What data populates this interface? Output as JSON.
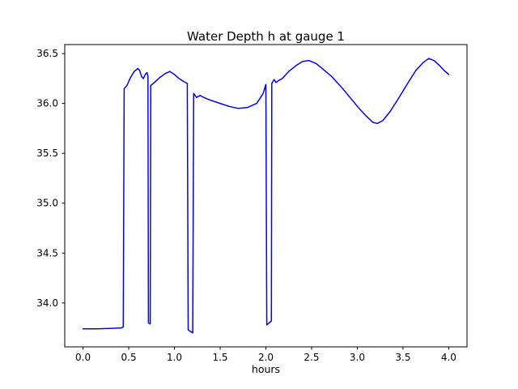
{
  "figure": {
    "background": "#ffffff"
  },
  "chart_data": {
    "type": "line",
    "title": "Water Depth h at gauge 1",
    "xlabel": "hours",
    "ylabel": "",
    "grid": false,
    "legend": null,
    "line_color": "#0000ff",
    "axes_color": "#000000",
    "xlim": [
      -0.2,
      4.2
    ],
    "ylim": [
      33.56,
      36.59
    ],
    "xticks": [
      0.0,
      0.5,
      1.0,
      1.5,
      2.0,
      2.5,
      3.0,
      3.5,
      4.0
    ],
    "xtick_labels": [
      "0.0",
      "0.5",
      "1.0",
      "1.5",
      "2.0",
      "2.5",
      "3.0",
      "3.5",
      "4.0"
    ],
    "yticks": [
      34.0,
      34.5,
      35.0,
      35.5,
      36.0,
      36.5
    ],
    "ytick_labels": [
      "34.0",
      "34.5",
      "35.0",
      "35.5",
      "36.0",
      "36.5"
    ],
    "series": [
      {
        "name": "water-depth-h-gauge-1",
        "points": [
          [
            0.0,
            33.74
          ],
          [
            0.15,
            33.74
          ],
          [
            0.3,
            33.745
          ],
          [
            0.42,
            33.75
          ],
          [
            0.44,
            33.76
          ],
          [
            0.45,
            36.15
          ],
          [
            0.48,
            36.18
          ],
          [
            0.52,
            36.26
          ],
          [
            0.56,
            36.32
          ],
          [
            0.6,
            36.35
          ],
          [
            0.62,
            36.33
          ],
          [
            0.64,
            36.27
          ],
          [
            0.66,
            36.25
          ],
          [
            0.68,
            36.29
          ],
          [
            0.7,
            36.31
          ],
          [
            0.71,
            36.27
          ],
          [
            0.715,
            33.8
          ],
          [
            0.735,
            33.79
          ],
          [
            0.74,
            36.18
          ],
          [
            0.78,
            36.21
          ],
          [
            0.84,
            36.26
          ],
          [
            0.9,
            36.3
          ],
          [
            0.95,
            36.32
          ],
          [
            1.0,
            36.29
          ],
          [
            1.05,
            36.25
          ],
          [
            1.1,
            36.22
          ],
          [
            1.14,
            36.2
          ],
          [
            1.15,
            33.73
          ],
          [
            1.2,
            33.7
          ],
          [
            1.21,
            36.1
          ],
          [
            1.24,
            36.06
          ],
          [
            1.28,
            36.08
          ],
          [
            1.32,
            36.06
          ],
          [
            1.4,
            36.03
          ],
          [
            1.5,
            36.0
          ],
          [
            1.6,
            35.97
          ],
          [
            1.7,
            35.95
          ],
          [
            1.8,
            35.96
          ],
          [
            1.9,
            36.0
          ],
          [
            1.97,
            36.1
          ],
          [
            2.0,
            36.19
          ],
          [
            2.01,
            33.78
          ],
          [
            2.06,
            33.82
          ],
          [
            2.065,
            36.2
          ],
          [
            2.09,
            36.24
          ],
          [
            2.11,
            36.21
          ],
          [
            2.14,
            36.23
          ],
          [
            2.18,
            36.25
          ],
          [
            2.25,
            36.32
          ],
          [
            2.33,
            36.38
          ],
          [
            2.4,
            36.42
          ],
          [
            2.47,
            36.43
          ],
          [
            2.55,
            36.4
          ],
          [
            2.63,
            36.34
          ],
          [
            2.72,
            36.27
          ],
          [
            2.82,
            36.17
          ],
          [
            2.92,
            36.06
          ],
          [
            3.02,
            35.95
          ],
          [
            3.1,
            35.87
          ],
          [
            3.17,
            35.81
          ],
          [
            3.22,
            35.8
          ],
          [
            3.28,
            35.83
          ],
          [
            3.36,
            35.92
          ],
          [
            3.45,
            36.05
          ],
          [
            3.55,
            36.2
          ],
          [
            3.64,
            36.33
          ],
          [
            3.72,
            36.41
          ],
          [
            3.78,
            36.45
          ],
          [
            3.84,
            36.43
          ],
          [
            3.9,
            36.38
          ],
          [
            3.95,
            36.33
          ],
          [
            4.0,
            36.29
          ]
        ]
      }
    ]
  }
}
